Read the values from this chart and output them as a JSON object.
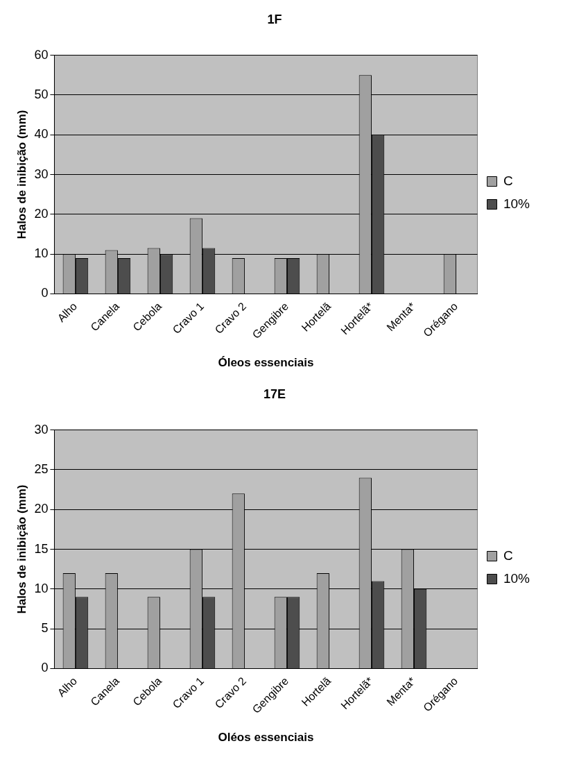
{
  "chart_data": [
    {
      "type": "bar",
      "title": "1F",
      "xlabel": "Óleos essenciais",
      "ylabel": "Halos de inibição (mm)",
      "categories": [
        "Alho",
        "Canela",
        "Cebola",
        "Cravo 1",
        "Cravo 2",
        "Gengibre",
        "Hortelã",
        "Hortelã*",
        "Menta*",
        "Orégano"
      ],
      "series": [
        {
          "name": "C",
          "color": "#a0a0a0",
          "values": [
            10,
            11,
            11.5,
            19,
            9,
            9,
            10,
            55,
            null,
            10
          ]
        },
        {
          "name": "10%",
          "color": "#4d4d4d",
          "values": [
            9,
            9,
            10,
            11.5,
            null,
            9,
            null,
            40,
            null,
            null
          ]
        }
      ],
      "ylim": [
        0,
        60
      ],
      "yticks": [
        0,
        10,
        20,
        30,
        40,
        50,
        60
      ],
      "grid": "y",
      "legend": "right"
    },
    {
      "type": "bar",
      "title": "17E",
      "xlabel": "Oléos essenciais",
      "ylabel": "Halos de inibição (mm)",
      "categories": [
        "Alho",
        "Canela",
        "Cebola",
        "Cravo 1",
        "Cravo 2",
        "Gengibre",
        "Hortelã",
        "Hortelã*",
        "Menta*",
        "Orégano"
      ],
      "series": [
        {
          "name": "C",
          "color": "#a0a0a0",
          "values": [
            12,
            12,
            9,
            15,
            22,
            9,
            12,
            24,
            15,
            null
          ]
        },
        {
          "name": "10%",
          "color": "#4d4d4d",
          "values": [
            9,
            null,
            null,
            9,
            null,
            9,
            null,
            11,
            10,
            null
          ]
        }
      ],
      "ylim": [
        0,
        30
      ],
      "yticks": [
        0,
        5,
        10,
        15,
        20,
        25,
        30
      ],
      "grid": "y",
      "legend": "right"
    }
  ]
}
